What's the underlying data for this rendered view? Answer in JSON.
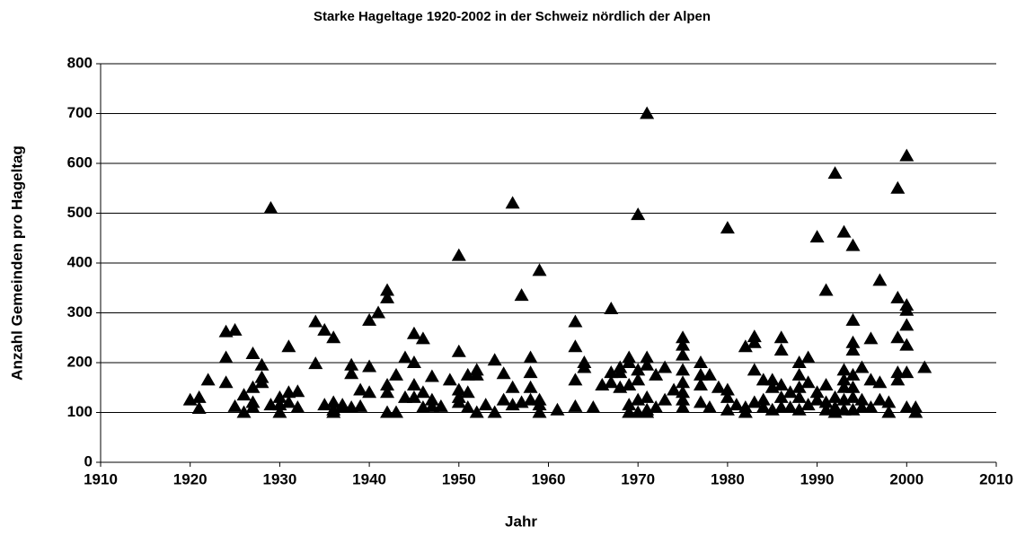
{
  "chart_data": {
    "type": "scatter",
    "title": "Starke Hageltage 1920-2002 in der Schweiz nördlich der Alpen",
    "x_label": "Jahr",
    "y_label": "Anzahl Gemeinden pro Hageltag",
    "color": "#000000",
    "grid": true,
    "xlim": [
      1910,
      2010
    ],
    "xticks": [
      1910,
      1920,
      1930,
      1940,
      1950,
      1960,
      1970,
      1980,
      1990,
      2000,
      2010
    ],
    "ylim": [
      0,
      800
    ],
    "yticks": [
      0,
      100,
      200,
      300,
      400,
      500,
      600,
      700,
      800
    ],
    "x": [
      1920,
      1921,
      1921,
      1922,
      1924,
      1924,
      1924,
      1925,
      1925,
      1926,
      1926,
      1927,
      1927,
      1927,
      1927,
      1928,
      1928,
      1928,
      1929,
      1929,
      1930,
      1930,
      1930,
      1931,
      1931,
      1931,
      1932,
      1932,
      1934,
      1934,
      1935,
      1935,
      1936,
      1936,
      1936,
      1936,
      1937,
      1937,
      1938,
      1938,
      1938,
      1939,
      1939,
      1940,
      1940,
      1940,
      1941,
      1942,
      1942,
      1942,
      1942,
      1942,
      1943,
      1943,
      1944,
      1944,
      1945,
      1945,
      1945,
      1945,
      1946,
      1946,
      1946,
      1947,
      1947,
      1947,
      1948,
      1949,
      1950,
      1950,
      1950,
      1950,
      1950,
      1951,
      1951,
      1951,
      1952,
      1952,
      1952,
      1953,
      1954,
      1954,
      1955,
      1955,
      1956,
      1956,
      1956,
      1957,
      1957,
      1958,
      1958,
      1958,
      1958,
      1959,
      1959,
      1959,
      1959,
      1961,
      1963,
      1963,
      1963,
      1963,
      1964,
      1964,
      1965,
      1966,
      1967,
      1967,
      1967,
      1968,
      1968,
      1968,
      1969,
      1969,
      1969,
      1969,
      1969,
      1970,
      1970,
      1970,
      1970,
      1970,
      1971,
      1971,
      1971,
      1971,
      1971,
      1971,
      1972,
      1972,
      1973,
      1973,
      1974,
      1975,
      1975,
      1975,
      1975,
      1975,
      1975,
      1975,
      1975,
      1977,
      1977,
      1977,
      1977,
      1978,
      1978,
      1979,
      1980,
      1980,
      1980,
      1980,
      1981,
      1982,
      1982,
      1982,
      1983,
      1983,
      1983,
      1983,
      1984,
      1984,
      1984,
      1985,
      1985,
      1985,
      1986,
      1986,
      1986,
      1986,
      1986,
      1987,
      1987,
      1988,
      1988,
      1988,
      1988,
      1988,
      1989,
      1989,
      1989,
      1990,
      1990,
      1990,
      1991,
      1991,
      1991,
      1991,
      1992,
      1992,
      1992,
      1992,
      1993,
      1993,
      1993,
      1993,
      1993,
      1993,
      1994,
      1994,
      1994,
      1994,
      1994,
      1994,
      1994,
      1994,
      1995,
      1995,
      1995,
      1996,
      1996,
      1996,
      1997,
      1997,
      1997,
      1998,
      1998,
      1999,
      1999,
      1999,
      1999,
      1999,
      2000,
      2000,
      2000,
      2000,
      2000,
      2000,
      2000,
      2001,
      2001,
      2002
    ],
    "values": [
      125,
      130,
      108,
      165,
      262,
      210,
      160,
      265,
      112,
      135,
      100,
      218,
      150,
      120,
      110,
      195,
      170,
      160,
      510,
      115,
      130,
      115,
      100,
      232,
      140,
      120,
      142,
      110,
      282,
      198,
      265,
      115,
      250,
      120,
      100,
      105,
      115,
      110,
      195,
      178,
      110,
      145,
      112,
      285,
      192,
      140,
      300,
      345,
      330,
      155,
      140,
      100,
      175,
      100,
      210,
      130,
      258,
      200,
      155,
      130,
      248,
      140,
      110,
      172,
      125,
      112,
      112,
      165,
      415,
      222,
      145,
      130,
      120,
      175,
      140,
      110,
      185,
      175,
      100,
      115,
      205,
      100,
      178,
      125,
      520,
      150,
      115,
      335,
      120,
      210,
      180,
      150,
      125,
      385,
      125,
      115,
      100,
      105,
      282,
      232,
      165,
      112,
      200,
      190,
      110,
      155,
      308,
      180,
      160,
      190,
      180,
      150,
      210,
      200,
      155,
      115,
      100,
      497,
      185,
      165,
      125,
      100,
      700,
      210,
      195,
      130,
      105,
      100,
      175,
      110,
      190,
      125,
      145,
      250,
      235,
      215,
      185,
      160,
      140,
      125,
      110,
      200,
      175,
      155,
      120,
      175,
      110,
      150,
      470,
      145,
      130,
      105,
      115,
      232,
      110,
      100,
      252,
      240,
      185,
      120,
      165,
      125,
      110,
      165,
      150,
      105,
      250,
      225,
      155,
      130,
      110,
      140,
      110,
      200,
      175,
      150,
      130,
      105,
      210,
      160,
      115,
      452,
      140,
      125,
      345,
      155,
      120,
      105,
      580,
      130,
      110,
      100,
      462,
      185,
      165,
      150,
      125,
      105,
      435,
      285,
      240,
      225,
      175,
      150,
      130,
      105,
      190,
      125,
      110,
      248,
      165,
      110,
      365,
      160,
      125,
      120,
      100,
      550,
      330,
      250,
      180,
      165,
      615,
      315,
      305,
      275,
      235,
      180,
      110,
      110,
      100,
      190
    ]
  }
}
